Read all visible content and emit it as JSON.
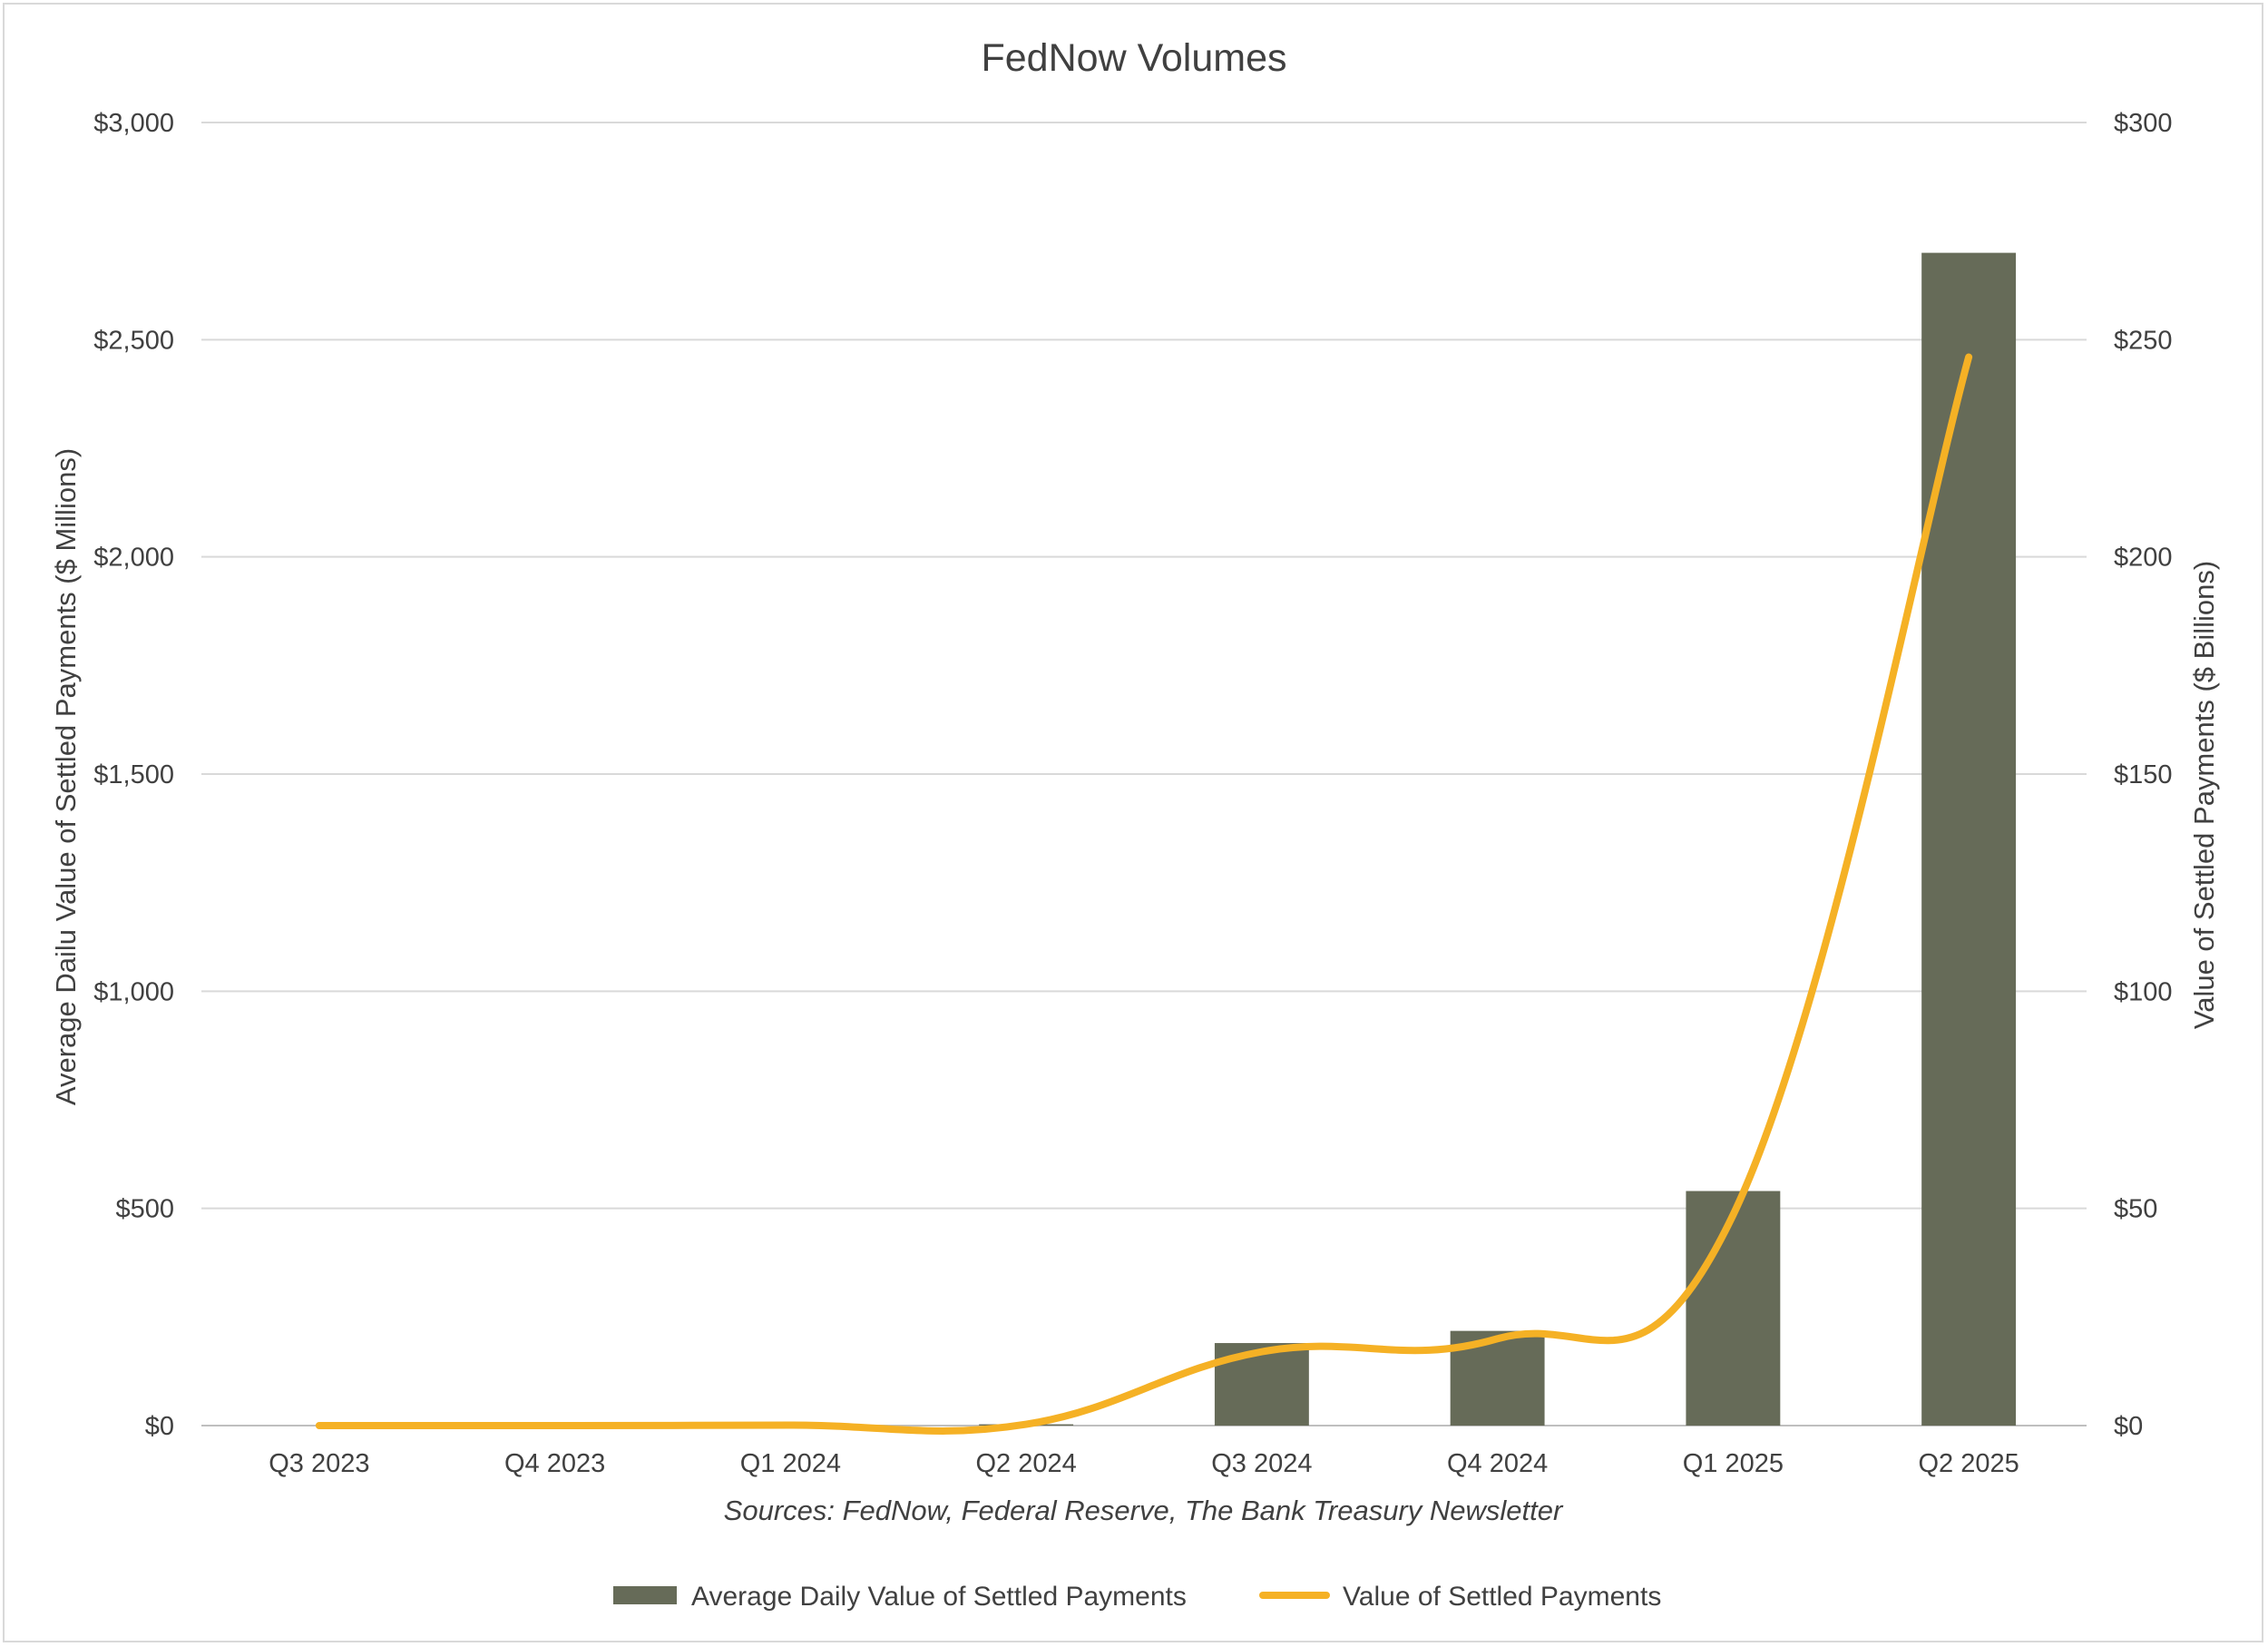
{
  "chart_data": {
    "type": "bar",
    "title": "FedNow Volumes",
    "categories": [
      "Q3 2023",
      "Q4 2023",
      "Q1 2024",
      "Q2 2024",
      "Q3 2024",
      "Q4 2024",
      "Q1 2025",
      "Q2 2025"
    ],
    "series": [
      {
        "name": "Average Daily Value of Settled Payments",
        "type": "bar",
        "axis": "left",
        "color": "#666b58",
        "values": [
          0,
          0,
          1,
          3,
          190,
          218,
          540,
          2700
        ]
      },
      {
        "name": "Value of Settled Payments",
        "type": "line",
        "axis": "right",
        "color": "#f5b125",
        "values": [
          0,
          0,
          0.1,
          0.3,
          17,
          20,
          48.5,
          246
        ]
      }
    ],
    "left_axis": {
      "label": "Average Dailu Value of Settled  Payments ($ Millions)",
      "ylim": [
        0,
        3000
      ],
      "ticks": [
        0,
        500,
        1000,
        1500,
        2000,
        2500,
        3000
      ],
      "tick_labels": [
        "$0",
        "$500",
        "$1,000",
        "$1,500",
        "$2,000",
        "$2,500",
        "$3,000"
      ]
    },
    "right_axis": {
      "label": "Value of Settled Payments ($ Billions)",
      "ylim": [
        0,
        300
      ],
      "ticks": [
        0,
        50,
        100,
        150,
        200,
        250,
        300
      ],
      "tick_labels": [
        "$0",
        "$50",
        "$100",
        "$150",
        "$200",
        "$250",
        "$300"
      ]
    },
    "grid": true,
    "legend_position": "bottom",
    "source_note": "Sources: FedNow, Federal Reserve, The Bank Treasury Newsletter"
  }
}
